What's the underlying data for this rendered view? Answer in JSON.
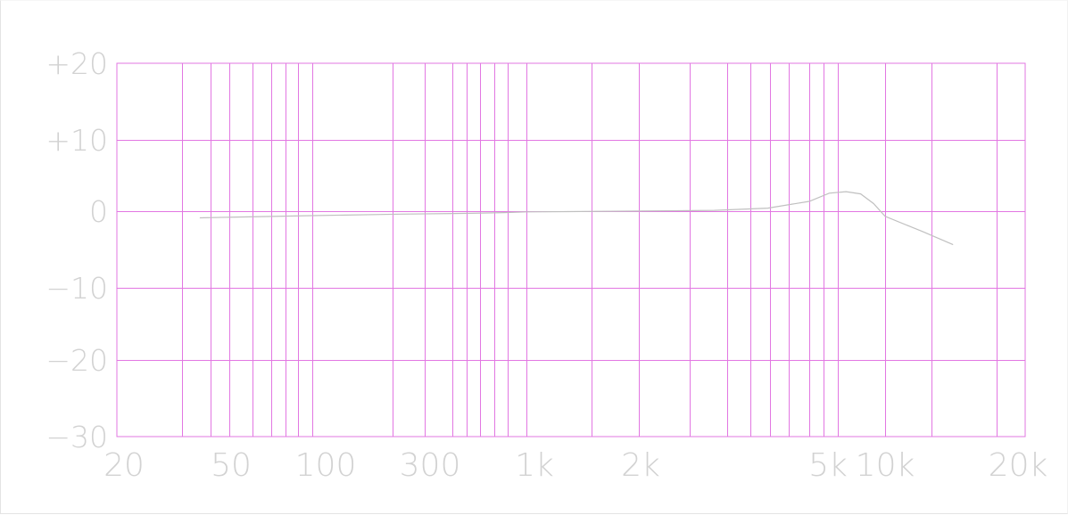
{
  "chart_data": {
    "type": "line",
    "title": "",
    "xlabel": "",
    "ylabel": "",
    "x_scale": "log",
    "grid": true,
    "colors": {
      "grid": "#e277e2",
      "labels": "#d2d2d2",
      "series": "#c0c0c0",
      "background": "#ffffff"
    },
    "y_ticks": [
      {
        "label": "+20",
        "value": 20
      },
      {
        "label": "+10",
        "value": 10
      },
      {
        "label": "0",
        "value": 0
      },
      {
        "label": "−10",
        "value": -10
      },
      {
        "label": "−20",
        "value": -20
      },
      {
        "label": "−30",
        "value": -30
      }
    ],
    "x_ticks": [
      {
        "label": "20",
        "value": 20
      },
      {
        "label": "50",
        "value": 50
      },
      {
        "label": "100",
        "value": 100
      },
      {
        "label": "300",
        "value": 300
      },
      {
        "label": "1k",
        "value": 1000
      },
      {
        "label": "2k",
        "value": 2000
      },
      {
        "label": "5k",
        "value": 5000
      },
      {
        "label": "10k",
        "value": 10000
      },
      {
        "label": "20k",
        "value": 20000
      }
    ],
    "series": [
      {
        "x": [
          45,
          60,
          100,
          200,
          400,
          700,
          1000,
          2000,
          3000,
          4000,
          5000,
          6000,
          7000,
          8000,
          9000,
          10000,
          12000,
          14000
        ],
        "y": [
          -0.7,
          -0.6,
          -0.4,
          -0.2,
          -0.1,
          0.0,
          0.1,
          0.2,
          0.3,
          0.6,
          1.5,
          2.6,
          2.8,
          2.5,
          1.2,
          -0.5,
          -2.5,
          -4.3
        ]
      }
    ]
  }
}
